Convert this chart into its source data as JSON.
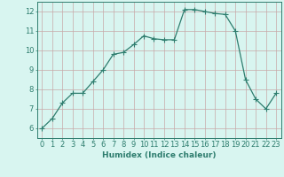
{
  "x": [
    0,
    1,
    2,
    3,
    4,
    5,
    6,
    7,
    8,
    9,
    10,
    11,
    12,
    13,
    14,
    15,
    16,
    17,
    18,
    19,
    20,
    21,
    22,
    23
  ],
  "y": [
    6.0,
    6.5,
    7.3,
    7.8,
    7.8,
    8.4,
    9.0,
    9.8,
    9.9,
    10.3,
    10.75,
    10.6,
    10.55,
    10.55,
    12.1,
    12.1,
    12.0,
    11.9,
    11.85,
    11.0,
    8.5,
    7.5,
    7.0,
    7.8
  ],
  "line_color": "#2e7d6e",
  "marker": "D",
  "marker_size": 2.0,
  "bg_color": "#d8f5f0",
  "grid_color_v": "#c8a8a8",
  "grid_color_h": "#c8a8a8",
  "ylabel_ticks": [
    6,
    7,
    8,
    9,
    10,
    11,
    12
  ],
  "xlabel": "Humidex (Indice chaleur)",
  "xlim": [
    -0.5,
    23.5
  ],
  "ylim": [
    5.5,
    12.5
  ],
  "xticks": [
    0,
    1,
    2,
    3,
    4,
    5,
    6,
    7,
    8,
    9,
    10,
    11,
    12,
    13,
    14,
    15,
    16,
    17,
    18,
    19,
    20,
    21,
    22,
    23
  ],
  "xtick_labels": [
    "0",
    "1",
    "2",
    "3",
    "4",
    "5",
    "6",
    "7",
    "8",
    "9",
    "10",
    "11",
    "12",
    "13",
    "14",
    "15",
    "16",
    "17",
    "18",
    "19",
    "20",
    "21",
    "22",
    "23"
  ],
  "xlabel_fontsize": 6.5,
  "tick_fontsize": 6.0
}
